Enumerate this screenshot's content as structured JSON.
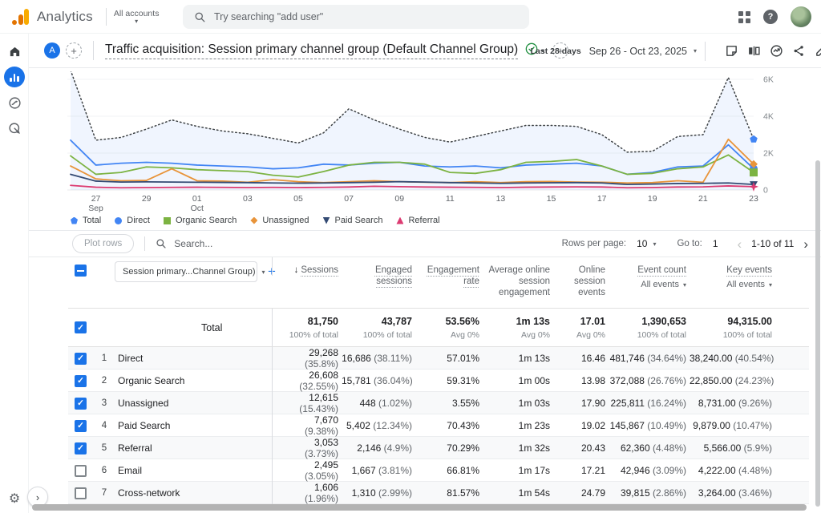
{
  "header": {
    "app_name": "Analytics",
    "accounts_label": "All accounts",
    "search_placeholder": "Try searching \"add user\"",
    "help_glyph": "?"
  },
  "toolbar": {
    "property_initial": "A",
    "report_title": "Traffic acquisition: Session primary channel group (Default Channel Group)",
    "date_range_label": "Last 28 days",
    "date_range": "Sep 26 - Oct 23, 2025"
  },
  "chart_data": {
    "type": "line",
    "title": "Traffic acquisition sessions over time",
    "dates": [
      "Sep 26",
      "Sep 27",
      "Sep 28",
      "Sep 29",
      "Sep 30",
      "Oct 01",
      "Oct 02",
      "Oct 03",
      "Oct 04",
      "Oct 05",
      "Oct 06",
      "Oct 07",
      "Oct 08",
      "Oct 09",
      "Oct 10",
      "Oct 11",
      "Oct 12",
      "Oct 13",
      "Oct 14",
      "Oct 15",
      "Oct 16",
      "Oct 17",
      "Oct 18",
      "Oct 19",
      "Oct 20",
      "Oct 21",
      "Oct 22",
      "Oct 23"
    ],
    "ylim": [
      0,
      6500
    ],
    "grid": true,
    "legend_position": "bottom",
    "yticks": [
      {
        "v": 0,
        "label": "0"
      },
      {
        "v": 2000,
        "label": "2K"
      },
      {
        "v": 4000,
        "label": "4K"
      },
      {
        "v": 6000,
        "label": "6K"
      }
    ],
    "xticks": [
      {
        "i": 1,
        "label": "27",
        "sub": "Sep"
      },
      {
        "i": 3,
        "label": "29"
      },
      {
        "i": 5,
        "label": "01",
        "sub": "Oct"
      },
      {
        "i": 7,
        "label": "03"
      },
      {
        "i": 9,
        "label": "05"
      },
      {
        "i": 11,
        "label": "07"
      },
      {
        "i": 13,
        "label": "09"
      },
      {
        "i": 15,
        "label": "11"
      },
      {
        "i": 17,
        "label": "13"
      },
      {
        "i": 19,
        "label": "15"
      },
      {
        "i": 21,
        "label": "17"
      },
      {
        "i": 23,
        "label": "19"
      },
      {
        "i": 25,
        "label": "21"
      },
      {
        "i": 27,
        "label": "23"
      }
    ],
    "series": [
      {
        "name": "Total",
        "color": "#3c4043",
        "marker_color": "#4285f4",
        "marker": "pentagon",
        "style": "dotted",
        "fill": "rgba(66,133,244,0.08)",
        "values": [
          6500,
          2700,
          2850,
          3300,
          3800,
          3450,
          3200,
          3050,
          2800,
          2550,
          3100,
          4400,
          3800,
          3300,
          2850,
          2600,
          2900,
          3200,
          3500,
          3500,
          3450,
          3000,
          2050,
          2100,
          2900,
          3000,
          6100,
          2750
        ]
      },
      {
        "name": "Direct",
        "color": "#4285f4",
        "marker": "circle",
        "style": "solid",
        "values": [
          2700,
          1350,
          1450,
          1500,
          1450,
          1350,
          1300,
          1250,
          1150,
          1200,
          1400,
          1350,
          1450,
          1500,
          1300,
          1250,
          1300,
          1200,
          1350,
          1400,
          1450,
          1300,
          850,
          950,
          1250,
          1300,
          2450,
          1150
        ]
      },
      {
        "name": "Organic Search",
        "color": "#7cb342",
        "marker": "square",
        "style": "solid",
        "values": [
          1850,
          850,
          950,
          1250,
          1200,
          1100,
          1050,
          1000,
          800,
          700,
          1000,
          1350,
          1500,
          1500,
          1400,
          950,
          900,
          1100,
          1500,
          1550,
          1650,
          1300,
          850,
          900,
          1150,
          1250,
          1900,
          950
        ]
      },
      {
        "name": "Unassigned",
        "color": "#e8943a",
        "marker": "diamond",
        "style": "solid",
        "values": [
          1300,
          600,
          500,
          520,
          1150,
          500,
          480,
          420,
          560,
          450,
          400,
          450,
          500,
          450,
          420,
          400,
          450,
          400,
          450,
          460,
          430,
          420,
          380,
          400,
          500,
          420,
          2750,
          1400
        ]
      },
      {
        "name": "Paid Search",
        "color": "#334a73",
        "marker": "triangle-down",
        "style": "solid",
        "values": [
          850,
          480,
          430,
          440,
          430,
          420,
          410,
          400,
          380,
          370,
          380,
          400,
          420,
          450,
          430,
          400,
          380,
          360,
          380,
          390,
          400,
          380,
          300,
          320,
          350,
          360,
          380,
          300
        ]
      },
      {
        "name": "Referral",
        "color": "#dc3b72",
        "marker": "triangle-up",
        "end_marker": "star",
        "style": "solid",
        "values": [
          250,
          150,
          120,
          130,
          140,
          150,
          140,
          130,
          140,
          130,
          140,
          160,
          200,
          180,
          160,
          150,
          140,
          130,
          150,
          160,
          170,
          160,
          120,
          130,
          160,
          170,
          220,
          180
        ]
      }
    ]
  },
  "controls": {
    "plot_rows_label": "Plot rows",
    "search_placeholder": "Search...",
    "rows_per_page_label": "Rows per page:",
    "rows_per_page_value": "10",
    "goto_label": "Go to:",
    "goto_value": "1",
    "pagination_range": "1-10 of 11"
  },
  "table": {
    "dimension_selector": "Session primary...Channel Group)",
    "columns": [
      {
        "label": "Sessions",
        "sorted": true,
        "u": true
      },
      {
        "label": "Engaged sessions",
        "u": true
      },
      {
        "label": "Engagement rate",
        "u": true
      },
      {
        "label": "Average online session engagement",
        "u": false
      },
      {
        "label": "Online session events",
        "u": false
      },
      {
        "label": "Event count",
        "u": true,
        "filter": "All events"
      },
      {
        "label": "Key events",
        "u": true,
        "filter": "All events"
      }
    ],
    "total_row": {
      "label": "Total",
      "cells": [
        {
          "v": "81,750",
          "sub": "100% of total"
        },
        {
          "v": "43,787",
          "sub": "100% of total"
        },
        {
          "v": "53.56%",
          "sub": "Avg 0%"
        },
        {
          "v": "1m 13s",
          "sub": "Avg 0%"
        },
        {
          "v": "17.01",
          "sub": "Avg 0%"
        },
        {
          "v": "1,390,653",
          "sub": "100% of total"
        },
        {
          "v": "94,315.00",
          "sub": "100% of total"
        }
      ]
    },
    "rows": [
      {
        "num": "1",
        "channel": "Direct",
        "checked": true,
        "cells": [
          {
            "v": "29,268",
            "p": "(35.8%)"
          },
          {
            "v": "16,686",
            "p": "(38.11%)"
          },
          {
            "v": "57.01%"
          },
          {
            "v": "1m 13s"
          },
          {
            "v": "16.46"
          },
          {
            "v": "481,746",
            "p": "(34.64%)"
          },
          {
            "v": "38,240.00",
            "p": "(40.54%)"
          }
        ]
      },
      {
        "num": "2",
        "channel": "Organic Search",
        "checked": true,
        "cells": [
          {
            "v": "26,608",
            "p": "(32.55%)"
          },
          {
            "v": "15,781",
            "p": "(36.04%)"
          },
          {
            "v": "59.31%"
          },
          {
            "v": "1m 00s"
          },
          {
            "v": "13.98"
          },
          {
            "v": "372,088",
            "p": "(26.76%)"
          },
          {
            "v": "22,850.00",
            "p": "(24.23%)"
          }
        ]
      },
      {
        "num": "3",
        "channel": "Unassigned",
        "checked": true,
        "cells": [
          {
            "v": "12,615",
            "p": "(15.43%)"
          },
          {
            "v": "448",
            "p": "(1.02%)"
          },
          {
            "v": "3.55%"
          },
          {
            "v": "1m 03s"
          },
          {
            "v": "17.90"
          },
          {
            "v": "225,811",
            "p": "(16.24%)"
          },
          {
            "v": "8,731.00",
            "p": "(9.26%)"
          }
        ]
      },
      {
        "num": "4",
        "channel": "Paid Search",
        "checked": true,
        "cells": [
          {
            "v": "7,670",
            "p": "(9.38%)"
          },
          {
            "v": "5,402",
            "p": "(12.34%)"
          },
          {
            "v": "70.43%"
          },
          {
            "v": "1m 23s"
          },
          {
            "v": "19.02"
          },
          {
            "v": "145,867",
            "p": "(10.49%)"
          },
          {
            "v": "9,879.00",
            "p": "(10.47%)"
          }
        ]
      },
      {
        "num": "5",
        "channel": "Referral",
        "checked": true,
        "cells": [
          {
            "v": "3,053",
            "p": "(3.73%)"
          },
          {
            "v": "2,146",
            "p": "(4.9%)"
          },
          {
            "v": "70.29%"
          },
          {
            "v": "1m 32s"
          },
          {
            "v": "20.43"
          },
          {
            "v": "62,360",
            "p": "(4.48%)"
          },
          {
            "v": "5,566.00",
            "p": "(5.9%)"
          }
        ]
      },
      {
        "num": "6",
        "channel": "Email",
        "checked": false,
        "cells": [
          {
            "v": "2,495",
            "p": "(3.05%)"
          },
          {
            "v": "1,667",
            "p": "(3.81%)"
          },
          {
            "v": "66.81%"
          },
          {
            "v": "1m 17s"
          },
          {
            "v": "17.21"
          },
          {
            "v": "42,946",
            "p": "(3.09%)"
          },
          {
            "v": "4,222.00",
            "p": "(4.48%)"
          }
        ]
      },
      {
        "num": "7",
        "channel": "Cross-network",
        "checked": false,
        "cells": [
          {
            "v": "1,606",
            "p": "(1.96%)"
          },
          {
            "v": "1,310",
            "p": "(2.99%)"
          },
          {
            "v": "81.57%"
          },
          {
            "v": "1m 54s"
          },
          {
            "v": "24.79"
          },
          {
            "v": "39,815",
            "p": "(2.86%)"
          },
          {
            "v": "3,264.00",
            "p": "(3.46%)"
          }
        ]
      }
    ]
  }
}
